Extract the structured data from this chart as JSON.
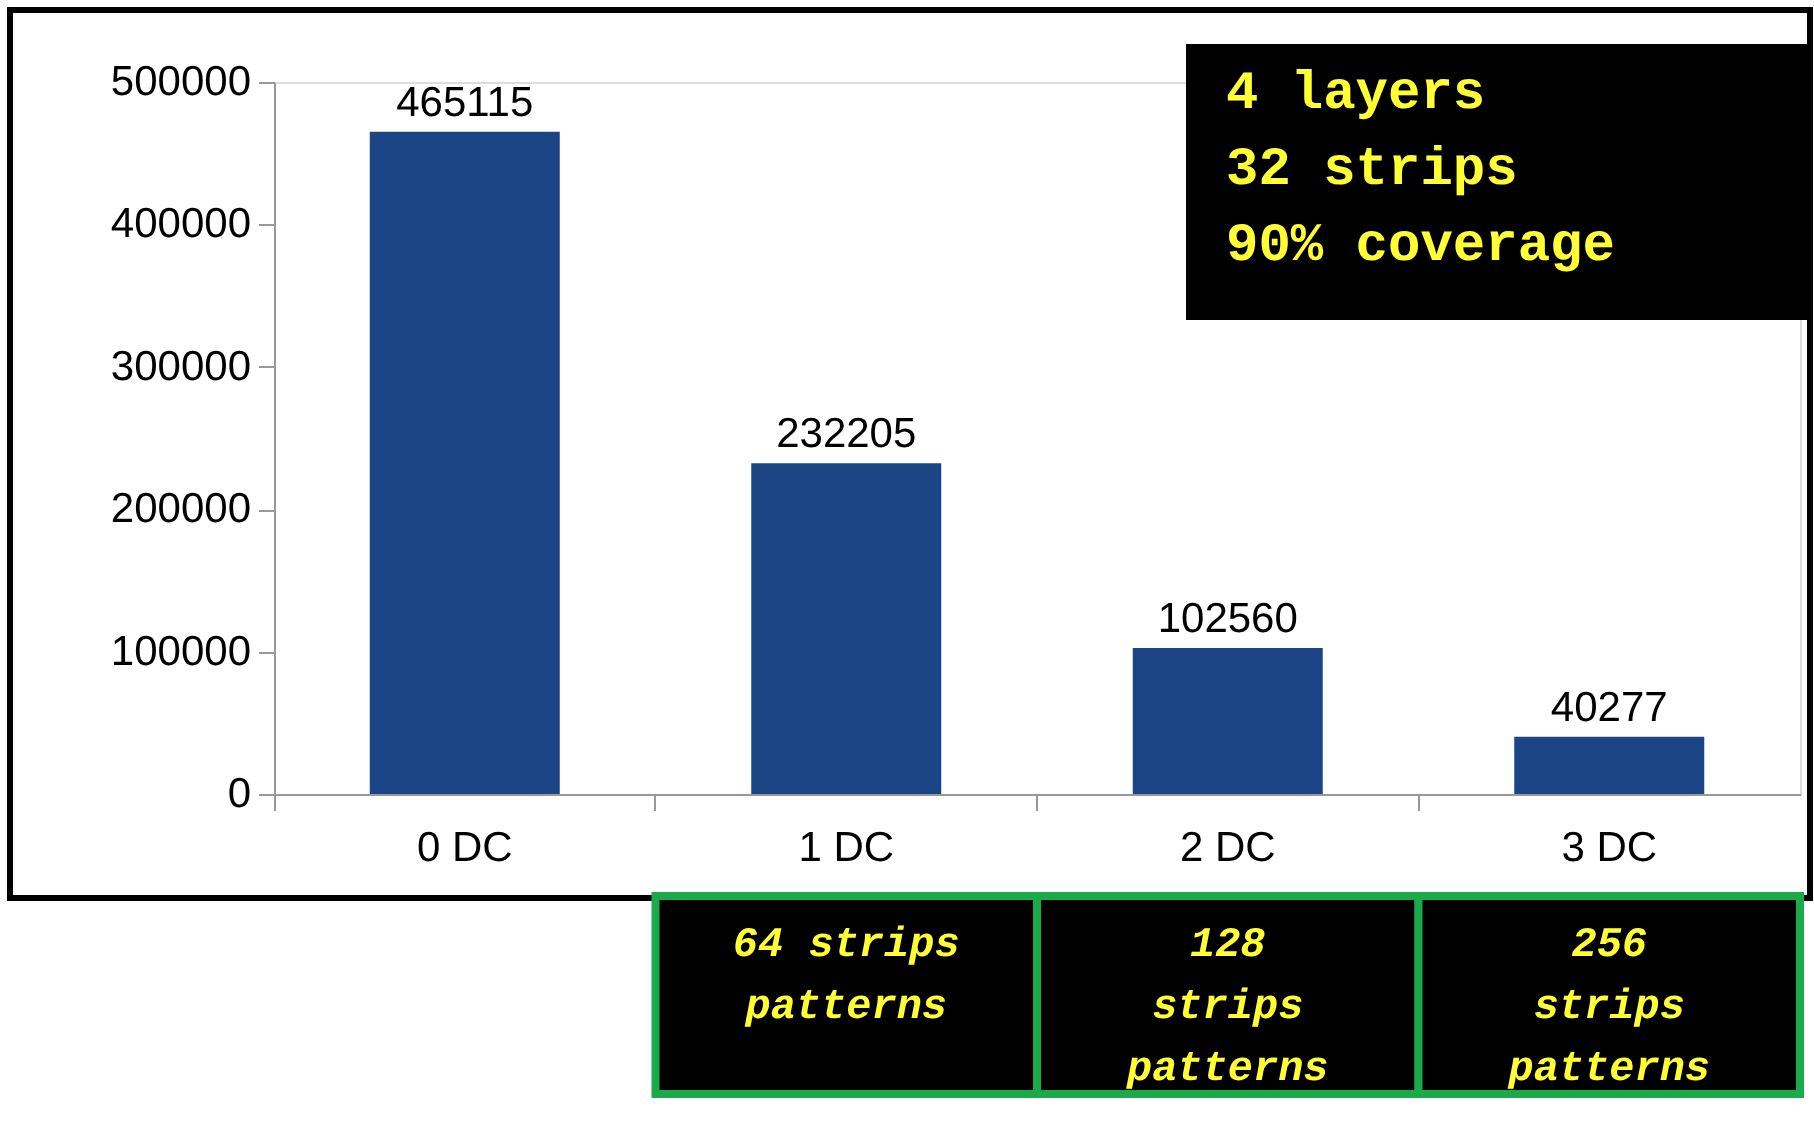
{
  "chart_data": {
    "type": "bar",
    "categories": [
      "0 DC",
      "1 DC",
      "2 DC",
      "3 DC"
    ],
    "values": [
      465115,
      232205,
      102560,
      40277
    ],
    "color": "#1b4585",
    "ylim": [
      0,
      500000
    ],
    "yticks": [
      0,
      100000,
      200000,
      300000,
      400000,
      500000
    ],
    "data_labels": true,
    "grid": false,
    "annotations": [
      "4 layers\n32 strips\n90% coverage",
      "64 strips\npatterns",
      "128\nstrips\npatterns",
      "256\nstrips\npatterns"
    ]
  }
}
